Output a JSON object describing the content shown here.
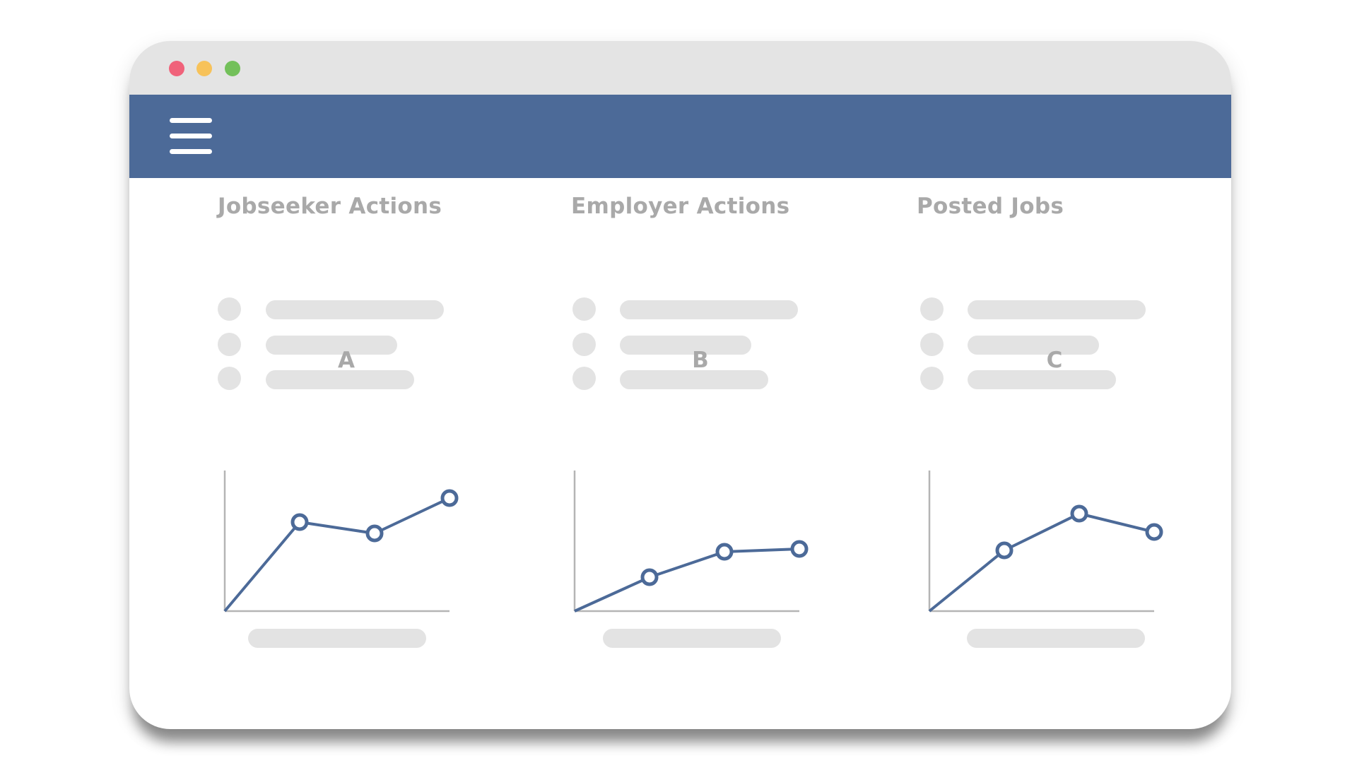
{
  "window": {
    "controls": [
      {
        "name": "close",
        "color": "#f0627a"
      },
      {
        "name": "minimize",
        "color": "#f7c25a"
      },
      {
        "name": "maximize",
        "color": "#73c05a"
      }
    ]
  },
  "header": {
    "menu_icon": "hamburger-menu-icon",
    "color": "#4c6a98"
  },
  "sections": [
    {
      "title": "Jobseeker Actions",
      "chart_label": "A"
    },
    {
      "title": "Employer Actions",
      "chart_label": "B"
    },
    {
      "title": "Posted Jobs",
      "chart_label": "C"
    }
  ],
  "chart_data": [
    {
      "type": "line",
      "title": "A",
      "x": [
        0,
        1,
        2,
        3
      ],
      "values": [
        0,
        6.3,
        5.5,
        8.0
      ],
      "ylim": [
        0,
        10
      ],
      "grid": false,
      "color": "#4c6a98"
    },
    {
      "type": "line",
      "title": "B",
      "x": [
        0,
        1,
        2,
        3
      ],
      "values": [
        0,
        2.4,
        4.2,
        4.4
      ],
      "ylim": [
        0,
        10
      ],
      "grid": false,
      "color": "#4c6a98"
    },
    {
      "type": "line",
      "title": "C",
      "x": [
        0,
        1,
        2,
        3
      ],
      "values": [
        0,
        4.3,
        6.9,
        5.6
      ],
      "ylim": [
        0,
        10
      ],
      "grid": false,
      "color": "#4c6a98"
    }
  ]
}
